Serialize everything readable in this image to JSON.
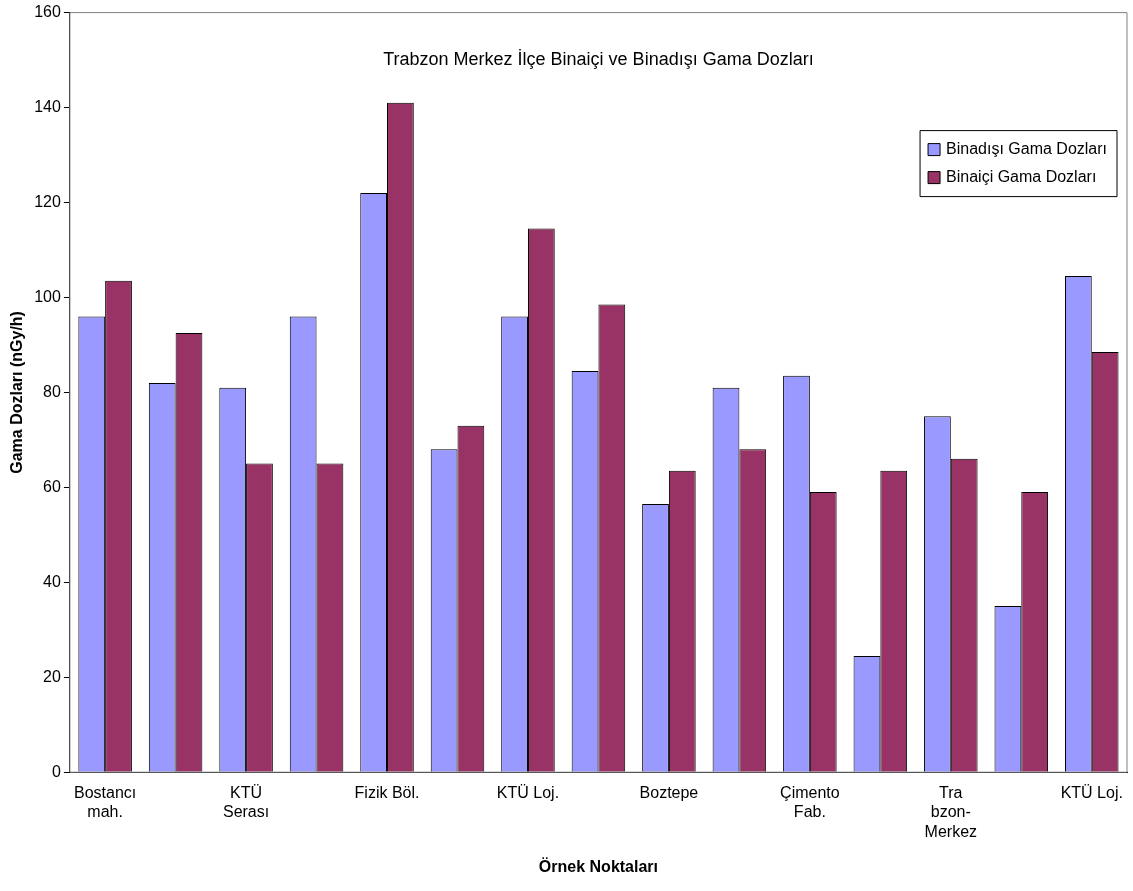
{
  "chart_data": {
    "type": "bar",
    "title": "Trabzon Merkez İlçe Binaiçi ve Binadışı Gama Dozları",
    "xlabel": "Örnek Noktaları",
    "ylabel": "Gama Dozları (nGy/h)",
    "categories": [
      "Bostancı mah.",
      null,
      "KTÜ Serası",
      null,
      "Fizik Böl.",
      null,
      "KTÜ Loj.",
      null,
      "Boztepe",
      null,
      "Çimento Fab.",
      null,
      "Tra bzon-Merkez",
      null,
      "KTÜ Loj."
    ],
    "series": [
      {
        "name": "Binadışı Gama Dozları",
        "color": "#9999ff",
        "values": [
          96,
          82,
          81,
          96,
          122,
          68,
          96,
          84.5,
          56.5,
          81,
          83.5,
          24.5,
          75,
          35,
          104.5
        ]
      },
      {
        "name": "Binaiçi Gama Dozları",
        "color": "#993366",
        "values": [
          103.5,
          92.5,
          65,
          65,
          141,
          73,
          114.5,
          98.5,
          63.5,
          68,
          59,
          63.5,
          66,
          59,
          88.5
        ]
      }
    ],
    "ylim": [
      0,
      160
    ],
    "yticks": [
      0,
      20,
      40,
      60,
      80,
      100,
      120,
      140,
      160
    ],
    "grid": false,
    "legend": "top right"
  }
}
